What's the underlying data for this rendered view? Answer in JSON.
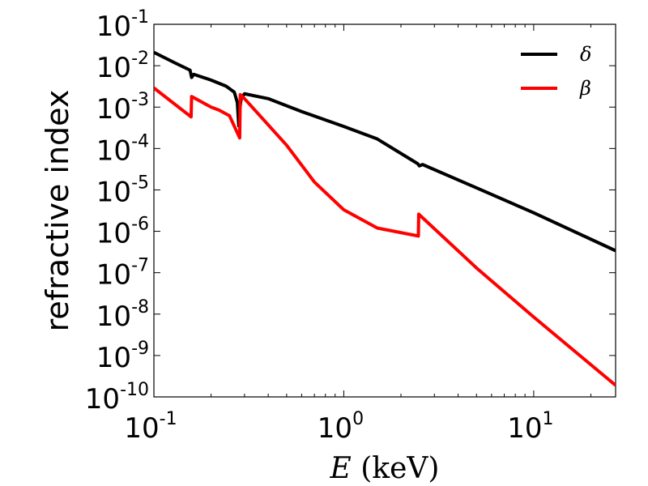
{
  "chart_data": {
    "type": "line",
    "xlabel_var": "E",
    "xlabel_unit": "(keV)",
    "ylabel": "refractive index",
    "xscale": "log",
    "yscale": "log",
    "xlim": [
      0.1,
      27
    ],
    "ylim": [
      1e-10,
      0.1
    ],
    "grid": false,
    "legend_position": "top-right",
    "x_ticks": [
      {
        "base": "10",
        "exp": "-1",
        "value": 0.1
      },
      {
        "base": "10",
        "exp": "0",
        "value": 1
      },
      {
        "base": "10",
        "exp": "1",
        "value": 10
      }
    ],
    "y_ticks": [
      {
        "base": "10",
        "exp": "-1",
        "value": 0.1
      },
      {
        "base": "10",
        "exp": "-2",
        "value": 0.01
      },
      {
        "base": "10",
        "exp": "-3",
        "value": 0.001
      },
      {
        "base": "10",
        "exp": "-4",
        "value": 0.0001
      },
      {
        "base": "10",
        "exp": "-5",
        "value": 1e-05
      },
      {
        "base": "10",
        "exp": "-6",
        "value": 1e-06
      },
      {
        "base": "10",
        "exp": "-7",
        "value": 1e-07
      },
      {
        "base": "10",
        "exp": "-8",
        "value": 1e-08
      },
      {
        "base": "10",
        "exp": "-9",
        "value": 1e-09
      },
      {
        "base": "10",
        "exp": "-10",
        "value": 1e-10
      }
    ],
    "series": [
      {
        "name": "δ",
        "color": "#000000",
        "points": [
          [
            0.1,
            0.021
          ],
          [
            0.13,
            0.0115
          ],
          [
            0.155,
            0.0078
          ],
          [
            0.158,
            0.0052
          ],
          [
            0.162,
            0.0062
          ],
          [
            0.2,
            0.0045
          ],
          [
            0.24,
            0.0032
          ],
          [
            0.265,
            0.0023
          ],
          [
            0.275,
            0.0013
          ],
          [
            0.28,
            0.00035
          ],
          [
            0.283,
            0.00085
          ],
          [
            0.288,
            0.0016
          ],
          [
            0.3,
            0.0021
          ],
          [
            0.4,
            0.0016
          ],
          [
            0.6,
            0.00078
          ],
          [
            1.0,
            0.00034
          ],
          [
            1.5,
            0.00017
          ],
          [
            2.45,
            4.3e-05
          ],
          [
            2.5,
            3.8e-05
          ],
          [
            2.6,
            4.1e-05
          ],
          [
            5.0,
            1.12e-05
          ],
          [
            10.0,
            2.8e-06
          ],
          [
            27.0,
            3.4e-07
          ]
        ]
      },
      {
        "name": "β",
        "color": "#ff0000",
        "points": [
          [
            0.1,
            0.0029
          ],
          [
            0.157,
            0.00058
          ],
          [
            0.158,
            0.0018
          ],
          [
            0.2,
            0.001
          ],
          [
            0.22,
            0.00085
          ],
          [
            0.25,
            0.00062
          ],
          [
            0.283,
            0.00018
          ],
          [
            0.285,
            0.002
          ],
          [
            0.3,
            0.0016
          ],
          [
            0.5,
            0.00012
          ],
          [
            0.7,
            1.55e-05
          ],
          [
            1.0,
            3.3e-06
          ],
          [
            1.5,
            1.2e-06
          ],
          [
            2.47,
            7.7e-07
          ],
          [
            2.48,
            2.6e-06
          ],
          [
            5.0,
            1.3e-07
          ],
          [
            10.0,
            8.5e-09
          ],
          [
            27.0,
            1.9e-10
          ]
        ]
      }
    ]
  }
}
